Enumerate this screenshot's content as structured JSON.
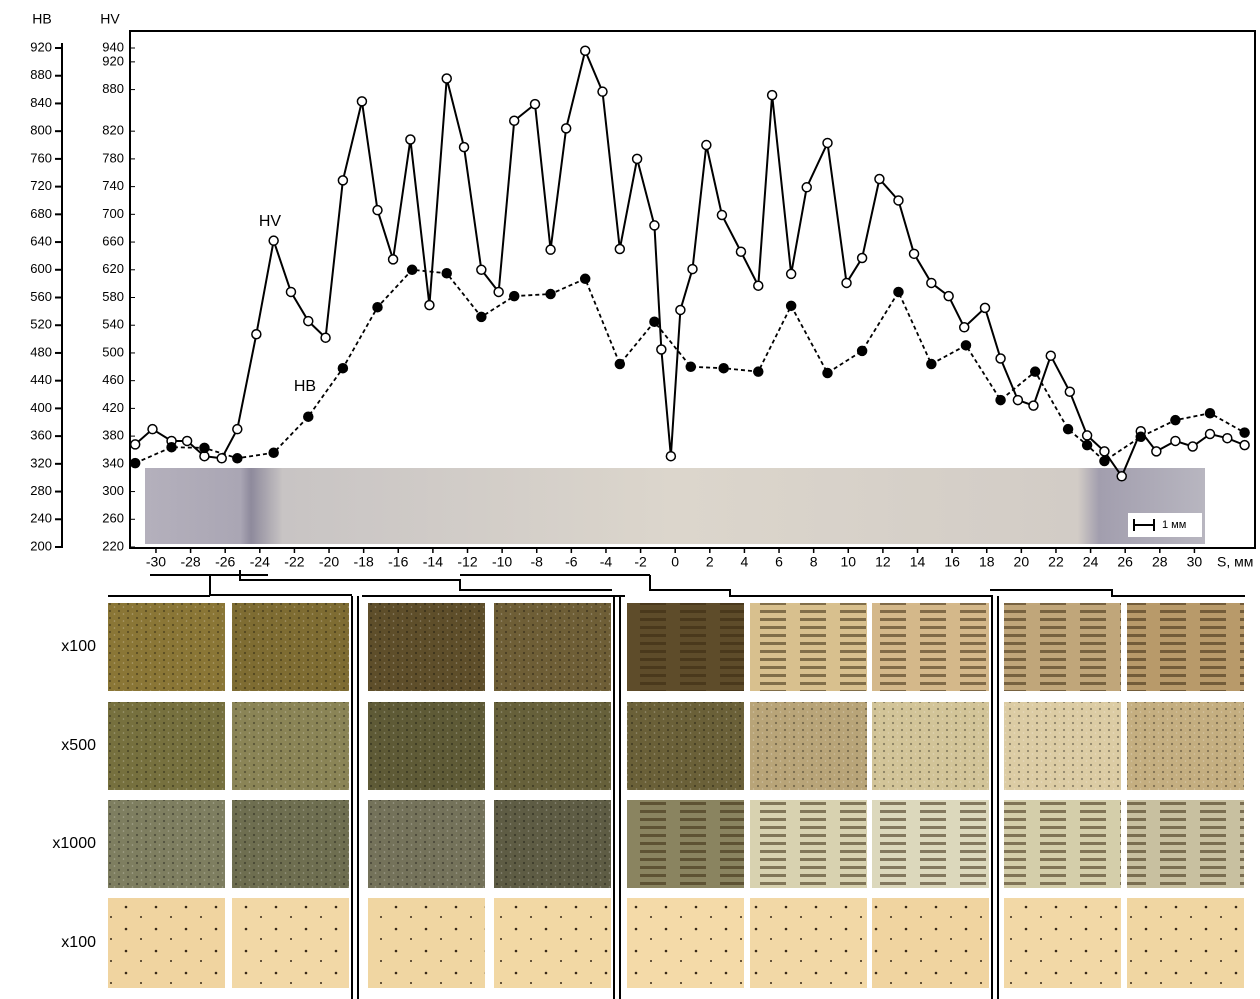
{
  "chart_data": {
    "type": "line",
    "ylabel": "HB",
    "y2label": "HV",
    "xlabel": "S, мм",
    "xlim": [
      -31.5,
      33.5
    ],
    "xticks": [
      -30,
      -28,
      -26,
      -24,
      -22,
      -20,
      -18,
      -16,
      -14,
      -12,
      -10,
      -8,
      -6,
      -4,
      -2,
      0,
      2,
      4,
      6,
      8,
      10,
      12,
      14,
      16,
      18,
      20,
      22,
      24,
      26,
      28,
      30
    ],
    "ylim": [
      200,
      920
    ],
    "yticks": [
      200,
      240,
      280,
      320,
      360,
      400,
      440,
      480,
      520,
      560,
      600,
      640,
      680,
      720,
      760,
      800,
      840,
      880,
      920
    ],
    "y2lim": [
      220,
      940
    ],
    "y2ticks": [
      220,
      260,
      300,
      340,
      380,
      420,
      460,
      500,
      540,
      580,
      620,
      660,
      700,
      740,
      780,
      820,
      880,
      920,
      940
    ],
    "series": [
      {
        "name": "HV",
        "axis": "y2",
        "color": "#000000",
        "line_style": "solid",
        "marker": "open",
        "x": [
          -31.2,
          -30.2,
          -29.1,
          -28.2,
          -27.2,
          -26.2,
          -25.3,
          -24.2,
          -23.2,
          -22.2,
          -21.2,
          -20.2,
          -19.2,
          -18.1,
          -17.2,
          -16.3,
          -15.3,
          -14.2,
          -13.2,
          -12.2,
          -11.2,
          -10.2,
          -9.3,
          -8.1,
          -7.2,
          -6.3,
          -5.2,
          -4.2,
          -3.2,
          -2.2,
          -1.2,
          -0.8,
          -0.25,
          0.3,
          1.0,
          1.8,
          2.7,
          3.8,
          4.8,
          5.6,
          6.7,
          7.6,
          8.8,
          9.9,
          10.8,
          11.8,
          12.9,
          13.8,
          14.8,
          15.8,
          16.7,
          17.9,
          18.8,
          19.8,
          20.7,
          21.7,
          22.8,
          23.8,
          24.8,
          25.8,
          26.9,
          27.8,
          28.9,
          29.9,
          30.9,
          31.9,
          32.9
        ],
        "values": [
          368,
          390,
          373,
          373,
          351,
          348,
          390,
          527,
          662,
          588,
          546,
          522,
          749,
          863,
          706,
          635,
          808,
          569,
          896,
          797,
          620,
          588,
          835,
          859,
          649,
          824,
          936,
          877,
          650,
          780,
          684,
          505,
          351,
          562,
          621,
          800,
          699,
          646,
          597,
          872,
          614,
          739,
          803,
          601,
          637,
          751,
          720,
          643,
          601,
          582,
          537,
          565,
          492,
          432,
          424,
          496,
          444,
          381,
          358,
          322,
          387,
          358,
          373,
          365,
          383,
          377,
          367
        ]
      },
      {
        "name": "HB",
        "axis": "y",
        "color": "#000000",
        "line_style": "dashed",
        "marker": "filled",
        "x": [
          -31.2,
          -29.1,
          -27.2,
          -25.3,
          -23.2,
          -21.2,
          -19.2,
          -17.2,
          -15.2,
          -13.2,
          -11.2,
          -9.3,
          -7.2,
          -5.2,
          -3.2,
          -1.2,
          0.9,
          2.8,
          4.8,
          6.7,
          8.8,
          10.8,
          12.9,
          14.8,
          16.8,
          18.8,
          20.8,
          22.7,
          23.8,
          24.8,
          26.9,
          28.9,
          30.9,
          32.9
        ],
        "values": [
          321,
          344,
          343,
          328,
          336,
          388,
          458,
          546,
          600,
          595,
          532,
          562,
          565,
          587,
          464,
          525,
          460,
          458,
          453,
          548,
          451,
          483,
          568,
          464,
          491,
          412,
          453,
          370,
          347,
          324,
          359,
          383,
          393,
          365
        ]
      }
    ]
  },
  "strip": {
    "scale_label": "1 мм"
  },
  "micrographs": {
    "row_labels": [
      "x100",
      "x500",
      "x1000",
      "x100"
    ]
  }
}
